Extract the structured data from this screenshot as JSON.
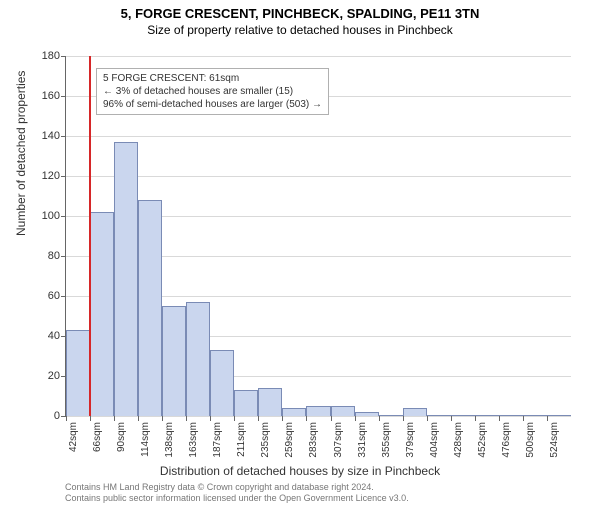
{
  "title": "5, FORGE CRESCENT, PINCHBECK, SPALDING, PE11 3TN",
  "subtitle": "Size of property relative to detached houses in Pinchbeck",
  "chart": {
    "type": "histogram",
    "ylabel": "Number of detached properties",
    "xlabel": "Distribution of detached houses by size in Pinchbeck",
    "ylim_max": 180,
    "ytick_step": 20,
    "bar_fill": "#cad6ee",
    "bar_stroke": "#7a8bb5",
    "grid_color": "#d9d9d9",
    "background": "#ffffff",
    "ref_line_color": "#d62728",
    "ref_line_x_index": 1,
    "categories": [
      "42sqm",
      "66sqm",
      "90sqm",
      "114sqm",
      "138sqm",
      "163sqm",
      "187sqm",
      "211sqm",
      "235sqm",
      "259sqm",
      "283sqm",
      "307sqm",
      "331sqm",
      "355sqm",
      "379sqm",
      "404sqm",
      "428sqm",
      "452sqm",
      "476sqm",
      "500sqm",
      "524sqm"
    ],
    "values": [
      43,
      102,
      137,
      108,
      55,
      57,
      33,
      13,
      14,
      4,
      5,
      5,
      2,
      0,
      4,
      0,
      0,
      0,
      0,
      0,
      0
    ]
  },
  "annotation": {
    "line1": "5 FORGE CRESCENT: 61sqm",
    "line2": "← 3% of detached houses are smaller (15)",
    "line3": "96% of semi-detached houses are larger (503) →"
  },
  "footer": {
    "line1": "Contains HM Land Registry data © Crown copyright and database right 2024.",
    "line2": "Contains public sector information licensed under the Open Government Licence v3.0."
  }
}
